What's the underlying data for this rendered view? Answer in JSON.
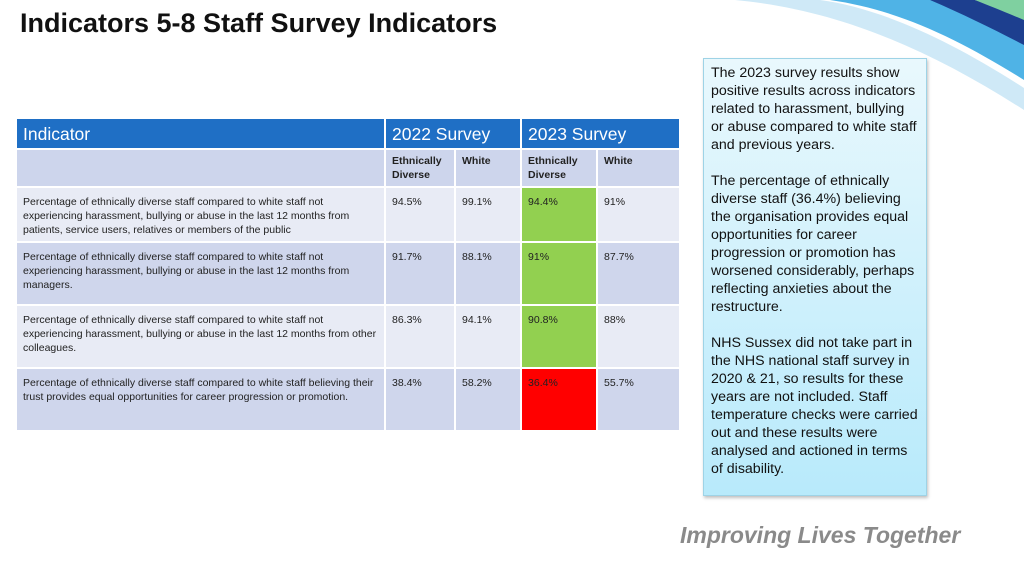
{
  "header": {
    "title": "Indicators 5-8 Staff Survey Indicators"
  },
  "table": {
    "header": [
      "Indicator",
      "2022 Survey",
      "2023 Survey"
    ],
    "subheader": [
      "Ethnically Diverse",
      "White",
      "Ethnically Diverse",
      "White"
    ],
    "rows": [
      [
        "Percentage of ethnically diverse staff compared to white staff not experiencing harassment, bullying or abuse in the last 12 months from patients, service users, relatives or members of the public",
        "94.5%",
        "99.1%",
        "94.4%",
        "91%"
      ],
      [
        "Percentage of ethnically diverse staff compared to white staff not experiencing harassment, bullying or abuse in the last 12 months from managers.",
        "91.7%",
        "88.1%",
        "91%",
        "87.7%"
      ],
      [
        "Percentage of ethnically diverse staff compared to white staff not experiencing harassment, bullying or abuse in the last 12 months from other colleagues.",
        "86.3%",
        "94.1%",
        "90.8%",
        "88%"
      ],
      [
        "Percentage of ethnically diverse staff compared to white staff believing their trust provides equal opportunities for career progression or promotion.",
        "38.4%",
        "58.2%",
        "36.4%",
        "55.7%"
      ]
    ]
  },
  "note": {
    "paragraphs": [
      "The 2023 survey results show positive results across indicators related to harassment, bullying or abuse compared to white staff and previous years.",
      "The percentage of ethnically diverse staff (36.4%) believing the organisation provides equal opportunities for career progression or promotion has worsened considerably, perhaps reflecting anxieties about the restructure.",
      "NHS Sussex did not take part in the NHS national staff survey in 2020 & 21, so results for these years are not included. Staff temperature checks were carried out and these results were analysed and actioned in terms of disability."
    ]
  },
  "footer": {
    "tagline": "Improving Lives Together"
  }
}
